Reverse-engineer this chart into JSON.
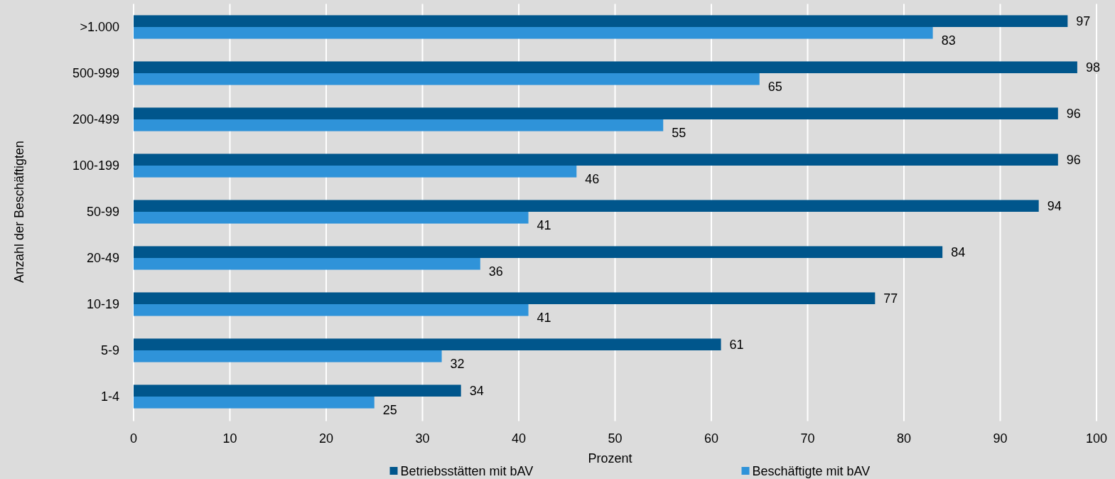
{
  "chart_data": {
    "type": "bar",
    "orientation": "horizontal",
    "xlabel": "Prozent",
    "ylabel": "Anzahl der Beschäftigten",
    "categories": [
      ">1.000",
      "500-999",
      "200-499",
      "100-199",
      "50-99",
      "20-49",
      "10-19",
      "5-9",
      "1-4"
    ],
    "series": [
      {
        "name": "Betriebsstätten mit bAV",
        "color": "#00568c",
        "values": [
          97,
          98,
          96,
          96,
          94,
          84,
          77,
          61,
          34
        ]
      },
      {
        "name": "Beschäftigte mit bAV",
        "color": "#2f93d9",
        "values": [
          83,
          65,
          55,
          46,
          41,
          36,
          41,
          32,
          25
        ]
      }
    ],
    "xlim": [
      0,
      100
    ],
    "xticks": [
      0,
      10,
      20,
      30,
      40,
      50,
      60,
      70,
      80,
      90,
      100
    ],
    "grid": "x",
    "legend": "bottom",
    "data_labels": true
  }
}
